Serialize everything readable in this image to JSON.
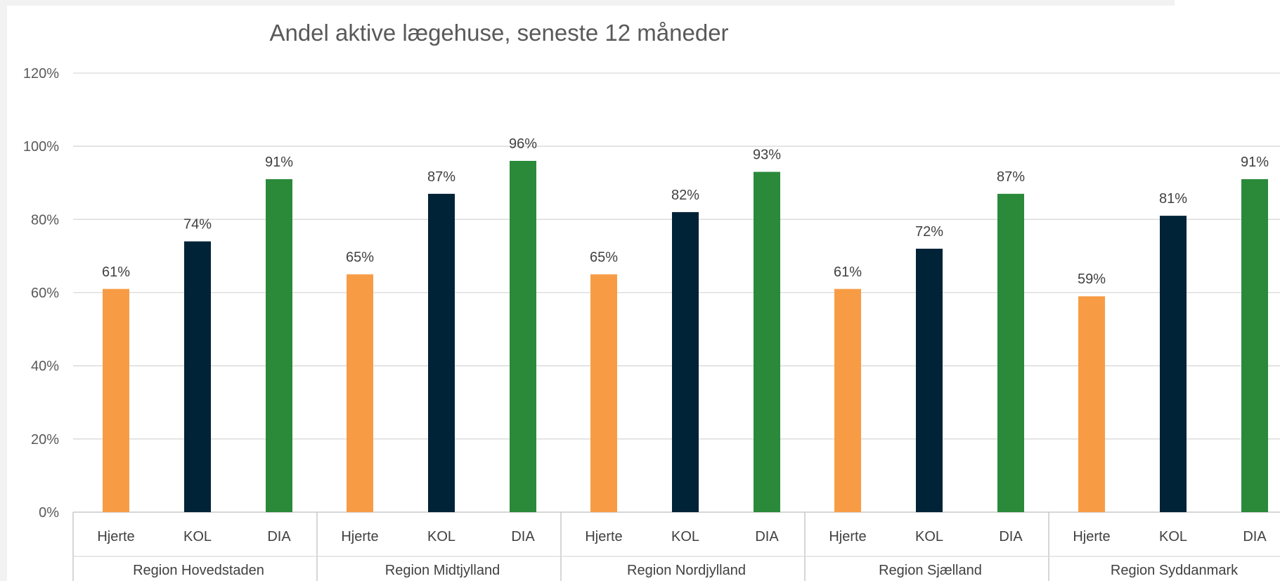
{
  "chart_data": {
    "type": "bar",
    "title": "Andel aktive lægehuse, seneste 12 måneder",
    "xlabel": "",
    "ylabel": "",
    "ylim": [
      0,
      120
    ],
    "ytick_step": 20,
    "yticks": [
      "0%",
      "20%",
      "40%",
      "60%",
      "80%",
      "100%",
      "120%"
    ],
    "grid": true,
    "legend": "none",
    "groups": [
      {
        "name": "Region Hovedstaden",
        "bars": [
          {
            "category": "Hjerte",
            "value": 61,
            "label": "61%"
          },
          {
            "category": "KOL",
            "value": 74,
            "label": "74%"
          },
          {
            "category": "DIA",
            "value": 91,
            "label": "91%"
          }
        ]
      },
      {
        "name": "Region Midtjylland",
        "bars": [
          {
            "category": "Hjerte",
            "value": 65,
            "label": "65%"
          },
          {
            "category": "KOL",
            "value": 87,
            "label": "87%"
          },
          {
            "category": "DIA",
            "value": 96,
            "label": "96%"
          }
        ]
      },
      {
        "name": "Region Nordjylland",
        "bars": [
          {
            "category": "Hjerte",
            "value": 65,
            "label": "65%"
          },
          {
            "category": "KOL",
            "value": 82,
            "label": "82%"
          },
          {
            "category": "DIA",
            "value": 93,
            "label": "93%"
          }
        ]
      },
      {
        "name": "Region Sjælland",
        "bars": [
          {
            "category": "Hjerte",
            "value": 61,
            "label": "61%"
          },
          {
            "category": "KOL",
            "value": 72,
            "label": "72%"
          },
          {
            "category": "DIA",
            "value": 87,
            "label": "87%"
          }
        ]
      },
      {
        "name": "Region Syddanmark",
        "bars": [
          {
            "category": "Hjerte",
            "value": 59,
            "label": "59%"
          },
          {
            "category": "KOL",
            "value": 81,
            "label": "81%"
          },
          {
            "category": "DIA",
            "value": 91,
            "label": "91%"
          }
        ]
      }
    ],
    "colors": {
      "Hjerte": "#f79c45",
      "KOL": "#002337",
      "DIA": "#2a8a3a"
    }
  }
}
